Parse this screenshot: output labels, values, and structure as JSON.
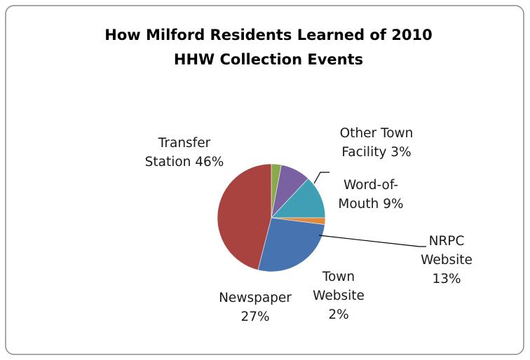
{
  "chart_data": {
    "type": "pie",
    "title_lines": [
      "How Milford Residents Learned of 2010",
      "HHW Collection Events"
    ],
    "colors": {
      "Transfer Station": "#a8433f",
      "Other Town Facility": "#8aa94a",
      "Word-of-Mouth": "#7a62a2",
      "NRPC Website": "#3fa0b5",
      "Town Website": "#e28a3a",
      "Newspaper": "#4774b0"
    },
    "slices": [
      {
        "name": "Other Town Facility",
        "value": 3,
        "label_lines": [
          "Other Town",
          "Facility 3%"
        ]
      },
      {
        "name": "Word-of-Mouth",
        "value": 9,
        "label_lines": [
          "Word-of-",
          "Mouth 9%"
        ]
      },
      {
        "name": "NRPC Website",
        "value": 13,
        "label_lines": [
          "NRPC",
          "Website",
          "13%"
        ]
      },
      {
        "name": "Town Website",
        "value": 2,
        "label_lines": [
          "Town",
          "Website",
          "2%"
        ]
      },
      {
        "name": "Newspaper",
        "value": 27,
        "label_lines": [
          "Newspaper",
          "27%"
        ]
      },
      {
        "name": "Transfer Station",
        "value": 46,
        "label_lines": [
          "Transfer",
          "Station 46%"
        ]
      }
    ],
    "legend": "none"
  }
}
